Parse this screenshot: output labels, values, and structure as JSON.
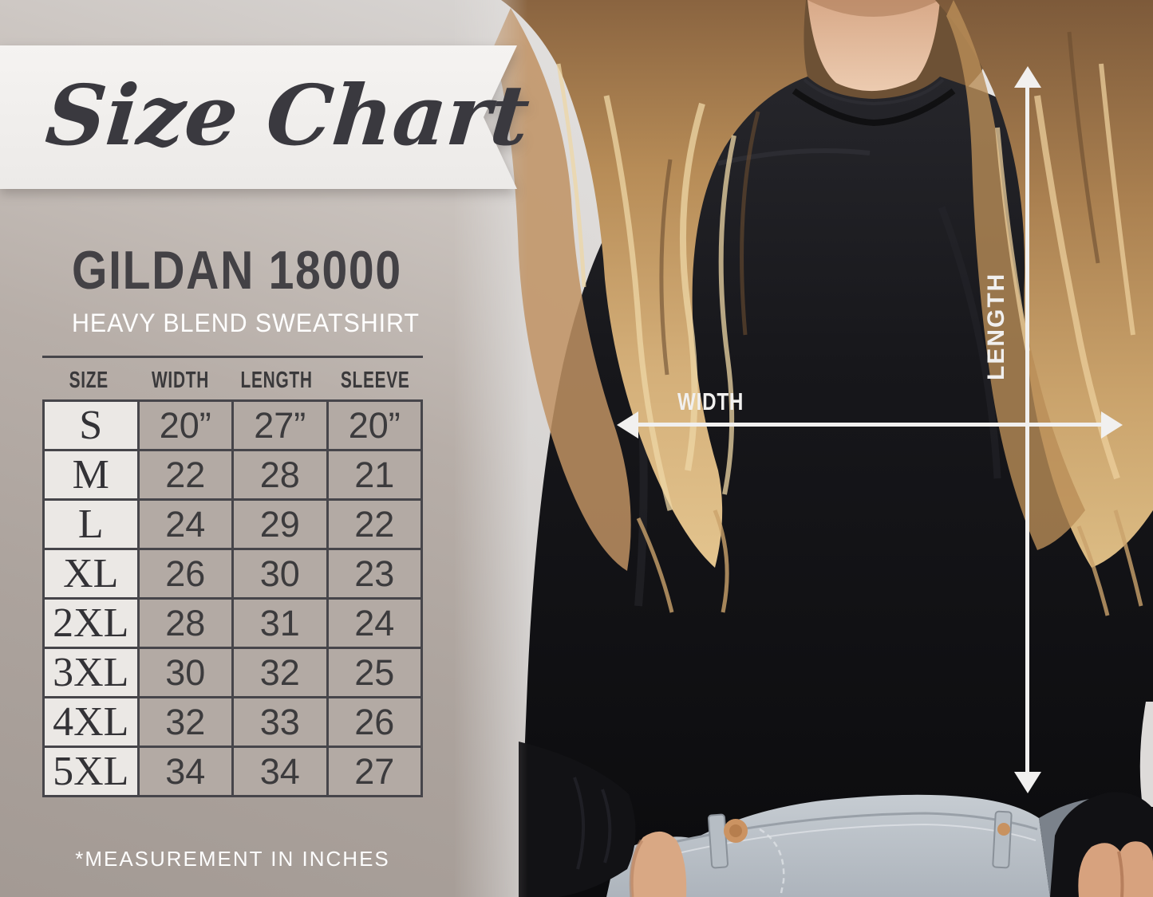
{
  "banner": {
    "title": "Size Chart"
  },
  "product": {
    "name": "GILDAN 18000",
    "subtitle": "HEAVY BLEND SWEATSHIRT"
  },
  "overlay": {
    "width_label": "WIDTH",
    "length_label": "LENGTH"
  },
  "chart_data": {
    "type": "table",
    "title": "Size Chart",
    "product": "Gildan 18000 Heavy Blend Sweatshirt",
    "units": "inches",
    "columns": [
      "SIZE",
      "WIDTH",
      "LENGTH",
      "SLEEVE"
    ],
    "rows": [
      [
        "S",
        "20”",
        "27”",
        "20”"
      ],
      [
        "M",
        "22",
        "28",
        "21"
      ],
      [
        "L",
        "24",
        "29",
        "22"
      ],
      [
        "XL",
        "26",
        "30",
        "23"
      ],
      [
        "2XL",
        "28",
        "31",
        "24"
      ],
      [
        "3XL",
        "30",
        "32",
        "25"
      ],
      [
        "4XL",
        "32",
        "33",
        "26"
      ],
      [
        "5XL",
        "34",
        "34",
        "27"
      ]
    ],
    "note": "*MEASUREMENT IN INCHES"
  },
  "colors": {
    "panel_taupe": "#b3aaa4",
    "banner": "#f1efed",
    "ink": "#3b3a3e",
    "size_cell_bg": "#ebe8e5",
    "cell_border": "#46454a",
    "arrow_white": "#f1f0ef",
    "subtitle_white": "#ffffff"
  }
}
